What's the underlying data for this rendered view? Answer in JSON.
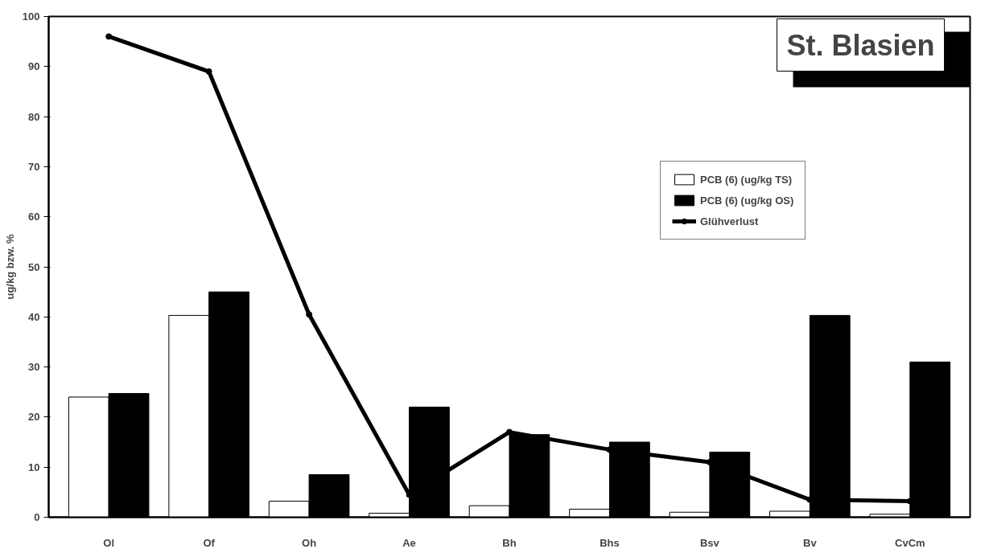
{
  "chart_data": {
    "type": "bar",
    "title": "St. Blasien",
    "ylabel": "ug/kg bzw. %",
    "categories": [
      "Ol",
      "Of",
      "Oh",
      "Ae",
      "Bh",
      "Bhs",
      "Bsv",
      "Bv",
      "CvCm"
    ],
    "series": [
      {
        "name": "PCB (6) (ug/kg TS)",
        "color": "#ffffff",
        "values": [
          24,
          40.3,
          3.2,
          0.8,
          2.3,
          1.6,
          1.0,
          1.2,
          0.6
        ]
      },
      {
        "name": "PCB (6) (ug/kg OS)",
        "color": "#000000",
        "values": [
          24.7,
          45,
          8.5,
          22,
          16.5,
          15,
          13,
          40.3,
          31
        ]
      },
      {
        "name": "Glühverlust",
        "type": "line",
        "color": "#000000",
        "marker": "circle",
        "values": [
          96,
          89,
          40.5,
          4.5,
          17,
          13.5,
          11,
          3.5,
          3.2
        ]
      }
    ],
    "ylim": [
      0,
      100
    ],
    "yticks": [
      0,
      10,
      20,
      30,
      40,
      50,
      60,
      70,
      80,
      90,
      100
    ],
    "grid": false,
    "legend": "top right"
  }
}
